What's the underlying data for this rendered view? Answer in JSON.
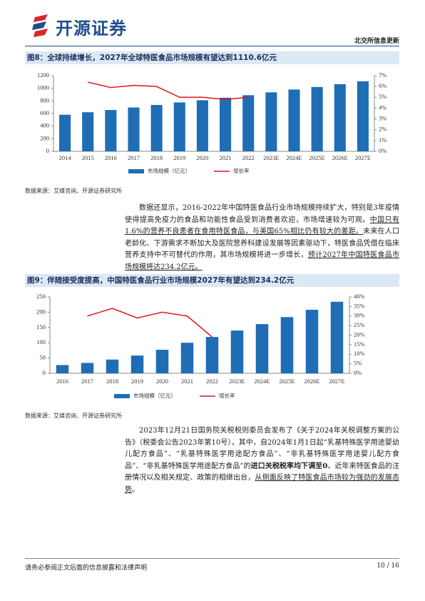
{
  "header": {
    "logo": "开源证券",
    "right": "北交所信息更新"
  },
  "chart_data": [
    {
      "type": "bar",
      "title": "图8：全球持续增长，2027年全球特医食品市场规模有望达到1110.6亿元",
      "categories": [
        "2014",
        "2015",
        "2016",
        "2017",
        "2018",
        "2019",
        "2020",
        "2021",
        "2022",
        "2023E",
        "2024E",
        "2025E",
        "2026E",
        "2027E"
      ],
      "series": [
        {
          "name": "市场规模（亿元）",
          "color": "#1f6db5",
          "type": "bar",
          "values": [
            580,
            620,
            655,
            695,
            735,
            775,
            810,
            850,
            890,
            935,
            980,
            1020,
            1065,
            1110.6
          ]
        },
        {
          "name": "增长率",
          "color": "#e0141e",
          "type": "line",
          "axis": "y2",
          "values": [
            null,
            6.4,
            5.9,
            6.1,
            6.0,
            5.0,
            5.0,
            4.8,
            5.0,
            null,
            null,
            null,
            null,
            null
          ]
        }
      ],
      "ylim": [
        0,
        1200
      ],
      "yticks": [
        0,
        200,
        400,
        600,
        800,
        1000,
        1200
      ],
      "y2lim": [
        0,
        7
      ],
      "y2ticks": [
        {
          "value": 0,
          "label": "0%"
        },
        {
          "value": 1,
          "label": "1%"
        },
        {
          "value": 2,
          "label": "2%"
        },
        {
          "value": 3,
          "label": "3%"
        },
        {
          "value": 4,
          "label": "4%"
        },
        {
          "value": 5,
          "label": "5%"
        },
        {
          "value": 6,
          "label": "6%"
        },
        {
          "value": 7,
          "label": "7%"
        }
      ],
      "legend": "bottom",
      "grid": false,
      "source": "数据来源：艾媒咨询、开源证券研究所"
    },
    {
      "type": "bar",
      "title": "图9：伴随接受度提高，中国特医食品行业市场规模2027年有望达到234.2亿元",
      "categories": [
        "2016",
        "2017",
        "2018",
        "2019",
        "2020",
        "2021",
        "2022",
        "2023E",
        "2024E",
        "2025E",
        "2026E",
        "2027E"
      ],
      "series": [
        {
          "name": "市场规模（亿元）",
          "color": "#1f6db5",
          "type": "bar",
          "values": [
            27,
            34,
            45,
            58,
            77,
            100,
            119,
            140,
            161,
            184,
            208,
            234.2
          ]
        },
        {
          "name": "增长率",
          "color": "#e0141e",
          "type": "line",
          "axis": "y2",
          "values": [
            null,
            30,
            34,
            29,
            32,
            30,
            19,
            null,
            null,
            null,
            null,
            null
          ]
        }
      ],
      "ylim": [
        0,
        250
      ],
      "yticks": [
        0,
        50,
        100,
        150,
        200,
        250
      ],
      "y2lim": [
        0,
        40
      ],
      "y2ticks": [
        {
          "value": 0,
          "label": "0%"
        },
        {
          "value": 5,
          "label": "5%"
        },
        {
          "value": 10,
          "label": "10%"
        },
        {
          "value": 15,
          "label": "15%"
        },
        {
          "value": 20,
          "label": "20%"
        },
        {
          "value": 25,
          "label": "25%"
        },
        {
          "value": 30,
          "label": "30%"
        },
        {
          "value": 35,
          "label": "35%"
        },
        {
          "value": 40,
          "label": "40%"
        }
      ],
      "legend": "bottom",
      "grid": false,
      "source": "数据来源：艾媒咨询、开源证券研究所"
    }
  ],
  "paragraphs": [
    [
      {
        "text": "数据还显示，2016-2022年中国特医食品行业市场规模持续扩大，特别是3年疫情使得提高免疫力的食品和功能性食品受到消费者欢迎，市场增速较为可观。"
      },
      {
        "text": "中国只有1.6%的营养不良患者在食用特医食品，与美国65%相比仍有较大的差距。",
        "underline": true
      },
      {
        "text": "未来在人口老龄化、下游需求不断加大及医院营养科建设发展等因素驱动下，特医食品凭借在临床营养支持中不可替代的作用，其市场规模将进一步增长，"
      },
      {
        "text": "预计2027年中国特医食品市场规模将达234.2亿元。",
        "underline": true
      }
    ],
    [
      {
        "text": "2023年12月21日国务院关税税则委员会发布了《关于2024年关税调整方案的公告》（税委会公告2023年第10号），其中，自2024年1月1日起“乳基特殊医学用途婴幼儿配方食品”、“乳基特殊医学用途配方食品”、“非乳基特殊医学用途婴儿配方食品”、“非乳基特殊医学用途配方食品”的"
      },
      {
        "text": "进口关税税率均下调至0",
        "bold": true
      },
      {
        "text": "。近年来特医食品的注册情况以及相关规定、政策的相继出台，"
      },
      {
        "text": "从侧面反映了特医食品市场较为强劲的发展态势",
        "underline": true
      },
      {
        "text": "。"
      }
    ]
  ],
  "footer": {
    "disclaimer": "请务必参阅正文后面的信息披露和法律声明",
    "page": "10 / 16"
  }
}
